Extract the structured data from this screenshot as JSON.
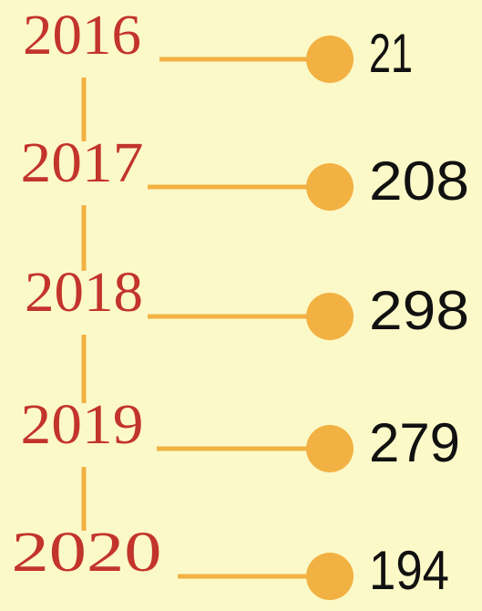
{
  "items": [
    {
      "year": "2016",
      "value": 21
    },
    {
      "year": "2017",
      "value": 208
    },
    {
      "year": "2018",
      "value": 298
    },
    {
      "year": "2019",
      "value": 279
    },
    {
      "year": "2020",
      "value": 194
    }
  ]
}
